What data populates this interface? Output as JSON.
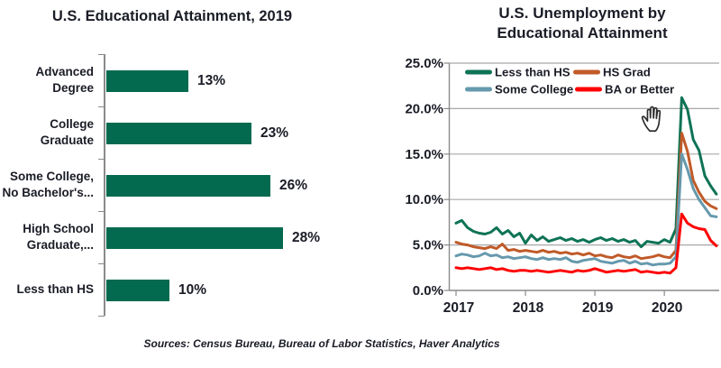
{
  "page": {
    "background": "#ffffff",
    "text_color": "#1a1c26",
    "source_note": "Sources: Census Bureau, Bureau of Labor Statistics, Haver Analytics"
  },
  "icons": {
    "cursor": "open-hand-cursor"
  },
  "chart_data": [
    {
      "type": "bar",
      "orientation": "horizontal",
      "title": "U.S. Educational Attainment, 2019",
      "categories": [
        "Advanced Degree",
        "College Graduate",
        "Some College, No Bachelor's...",
        "High School Graduate,...",
        "Less than HS"
      ],
      "values": [
        13,
        23,
        26,
        28,
        10
      ],
      "value_labels": [
        "13%",
        "23%",
        "26%",
        "28%",
        "10%"
      ],
      "bar_color": "#046a4f",
      "xlim": [
        0,
        30
      ],
      "grid": false,
      "legend": false
    },
    {
      "type": "line",
      "title": "U.S. Unemployment by Educational Attainment",
      "title_lines": [
        "U.S. Unemployment by",
        "Educational Attainment"
      ],
      "ylim": [
        0,
        25
      ],
      "y_tick_values": [
        25,
        20,
        15,
        10,
        5,
        0
      ],
      "y_tick_labels": [
        "25.0%",
        "20.0%",
        "15.0%",
        "10.0%",
        "5.0%",
        "0.0%"
      ],
      "x_tick_labels": [
        "2017",
        "2018",
        "2019",
        "2020"
      ],
      "x_range": "Monthly, Jan 2017 - Oct 2020",
      "grid": true,
      "legend_position": "top-inside",
      "grid_color": "#a8a8a8",
      "axis_color": "#8a8a8a",
      "series": [
        {
          "name": "Less than HS",
          "color": "#0e7355",
          "values": [
            7.4,
            7.7,
            6.9,
            6.5,
            6.3,
            6.2,
            6.4,
            6.9,
            6.2,
            6.6,
            5.9,
            6.3,
            5.2,
            6.1,
            5.5,
            5.9,
            5.4,
            5.6,
            5.8,
            5.5,
            5.7,
            5.4,
            5.6,
            5.3,
            5.6,
            5.8,
            5.5,
            5.7,
            5.4,
            5.6,
            5.3,
            5.5,
            4.8,
            5.4,
            5.3,
            5.2,
            5.6,
            5.3,
            6.8,
            21.2,
            19.9,
            16.6,
            15.4,
            12.6,
            11.5,
            10.6
          ]
        },
        {
          "name": "HS Grad",
          "color": "#c05a28",
          "values": [
            5.3,
            5.1,
            5.0,
            4.8,
            4.7,
            4.6,
            4.8,
            4.6,
            5.1,
            4.4,
            4.5,
            4.3,
            4.4,
            4.3,
            4.2,
            4.4,
            4.2,
            4.3,
            4.1,
            4.2,
            4.0,
            4.1,
            3.9,
            4.1,
            3.8,
            3.9,
            3.7,
            3.6,
            3.9,
            3.7,
            3.6,
            3.8,
            3.5,
            3.6,
            3.7,
            3.9,
            3.7,
            3.6,
            4.4,
            17.3,
            15.3,
            12.1,
            10.8,
            9.8,
            9.3,
            9.0
          ]
        },
        {
          "name": "Some College",
          "color": "#6699ad",
          "values": [
            3.8,
            4.0,
            3.9,
            3.7,
            3.8,
            4.1,
            3.8,
            3.9,
            3.6,
            3.7,
            3.5,
            3.6,
            3.7,
            3.5,
            3.4,
            3.6,
            3.4,
            3.5,
            3.4,
            3.6,
            3.2,
            3.1,
            3.3,
            3.4,
            3.5,
            3.2,
            3.1,
            3.0,
            3.2,
            3.3,
            3.0,
            3.2,
            2.9,
            3.0,
            2.8,
            2.9,
            2.9,
            3.0,
            3.7,
            15.0,
            13.3,
            11.2,
            10.0,
            9.1,
            8.2,
            8.1
          ]
        },
        {
          "name": "BA or Better",
          "color": "#fe0000",
          "values": [
            2.5,
            2.4,
            2.5,
            2.4,
            2.3,
            2.4,
            2.5,
            2.3,
            2.4,
            2.2,
            2.1,
            2.2,
            2.2,
            2.1,
            2.2,
            2.1,
            2.0,
            2.1,
            2.2,
            2.1,
            2.0,
            2.2,
            2.1,
            2.2,
            2.4,
            2.2,
            2.0,
            2.1,
            2.2,
            2.1,
            2.2,
            2.3,
            2.0,
            2.1,
            2.0,
            1.9,
            2.0,
            1.9,
            2.5,
            8.4,
            7.4,
            7.0,
            6.8,
            6.7,
            5.5,
            4.9
          ]
        }
      ]
    }
  ]
}
